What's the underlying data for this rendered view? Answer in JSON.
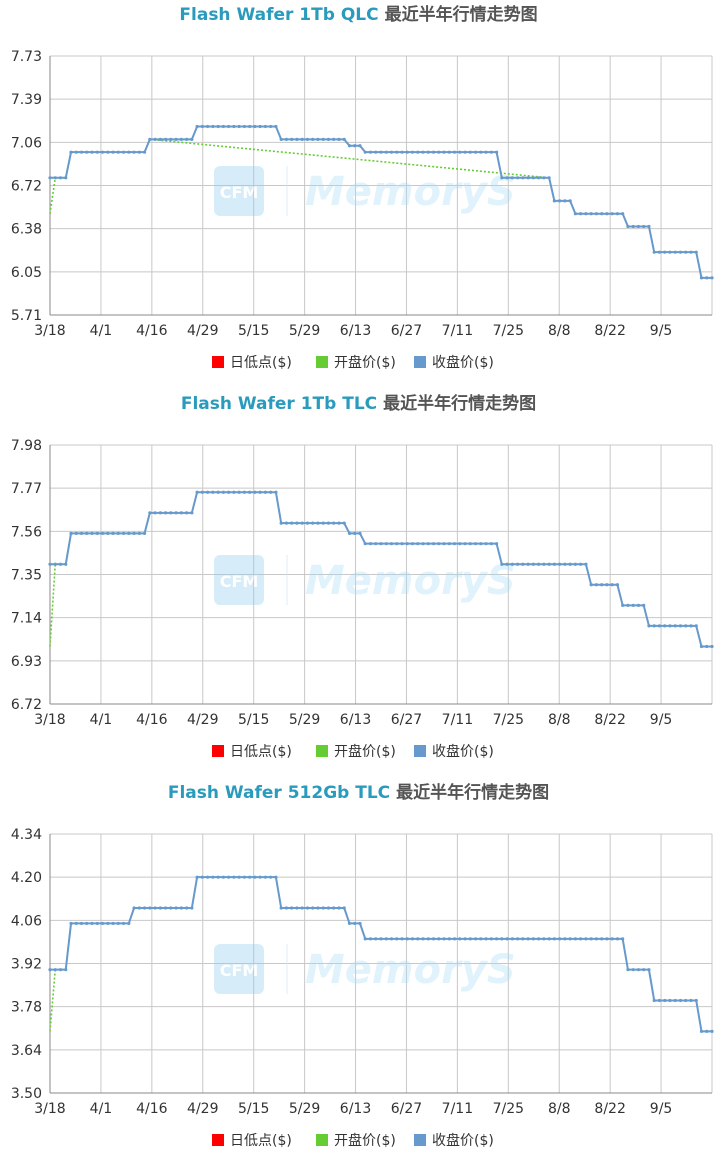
{
  "chart_data": [
    {
      "type": "line",
      "title": "Flash Wafer 1Tb QLC",
      "title_suffix": "最近半年行情走势图",
      "ylim": [
        5.71,
        7.73
      ],
      "y_ticks": [
        "7.73",
        "7.39",
        "7.06",
        "6.72",
        "6.38",
        "6.05",
        "5.71"
      ],
      "x_ticks": [
        "3/18",
        "4/1",
        "4/16",
        "4/29",
        "5/15",
        "5/29",
        "6/13",
        "6/27",
        "7/11",
        "7/25",
        "8/8",
        "8/22",
        "9/5"
      ],
      "x_range": [
        0,
        126
      ],
      "legend": [
        "日低点($)",
        "开盘价($)",
        "收盘价($)"
      ],
      "colors": {
        "low": "#ff0000",
        "open": "#66cc33",
        "close": "#6699cc"
      },
      "series": [
        {
          "name": "收盘价($)",
          "steps": [
            [
              0,
              6.78
            ],
            [
              4,
              6.98
            ],
            [
              19,
              7.08
            ],
            [
              28,
              7.18
            ],
            [
              44,
              7.08
            ],
            [
              57,
              7.03
            ],
            [
              60,
              6.98
            ],
            [
              86,
              6.78
            ],
            [
              96,
              6.6
            ],
            [
              100,
              6.5
            ],
            [
              110,
              6.4
            ],
            [
              115,
              6.2
            ],
            [
              124,
              6.0
            ],
            [
              126,
              6.0
            ]
          ]
        },
        {
          "name": "开盘价($)",
          "points": [
            [
              0,
              6.5
            ],
            [
              1,
              6.78
            ],
            [
              3,
              6.78
            ],
            [
              4,
              6.98
            ],
            [
              18,
              6.98
            ],
            [
              19,
              7.08
            ],
            [
              95,
              6.78
            ],
            [
              96,
              6.6
            ]
          ]
        }
      ]
    },
    {
      "type": "line",
      "title": "Flash Wafer 1Tb TLC",
      "title_suffix": "最近半年行情走势图",
      "ylim": [
        6.72,
        7.98
      ],
      "y_ticks": [
        "7.98",
        "7.77",
        "7.56",
        "7.35",
        "7.14",
        "6.93",
        "6.72"
      ],
      "x_ticks": [
        "3/18",
        "4/1",
        "4/16",
        "4/29",
        "5/15",
        "5/29",
        "6/13",
        "6/27",
        "7/11",
        "7/25",
        "8/8",
        "8/22",
        "9/5"
      ],
      "x_range": [
        0,
        126
      ],
      "legend": [
        "日低点($)",
        "开盘价($)",
        "收盘价($)"
      ],
      "colors": {
        "low": "#ff0000",
        "open": "#66cc33",
        "close": "#6699cc"
      },
      "series": [
        {
          "name": "收盘价($)",
          "steps": [
            [
              0,
              7.4
            ],
            [
              4,
              7.55
            ],
            [
              19,
              7.65
            ],
            [
              28,
              7.75
            ],
            [
              44,
              7.6
            ],
            [
              57,
              7.55
            ],
            [
              60,
              7.5
            ],
            [
              86,
              7.4
            ],
            [
              103,
              7.3
            ],
            [
              109,
              7.2
            ],
            [
              114,
              7.1
            ],
            [
              124,
              7.0
            ],
            [
              126,
              7.0
            ]
          ]
        },
        {
          "name": "开盘价($)",
          "points": [
            [
              0,
              7.0
            ],
            [
              1,
              7.4
            ],
            [
              3,
              7.4
            ],
            [
              4,
              7.55
            ],
            [
              18,
              7.55
            ],
            [
              19,
              7.65
            ]
          ]
        }
      ]
    },
    {
      "type": "line",
      "title": "Flash Wafer 512Gb TLC",
      "title_suffix": "最近半年行情走势图",
      "ylim": [
        3.5,
        4.34
      ],
      "y_ticks": [
        "4.34",
        "4.20",
        "4.06",
        "3.92",
        "3.78",
        "3.64",
        "3.50"
      ],
      "x_ticks": [
        "3/18",
        "4/1",
        "4/16",
        "4/29",
        "5/15",
        "5/29",
        "6/13",
        "6/27",
        "7/11",
        "7/25",
        "8/8",
        "8/22",
        "9/5"
      ],
      "x_range": [
        0,
        126
      ],
      "legend": [
        "日低点($)",
        "开盘价($)",
        "收盘价($)"
      ],
      "colors": {
        "low": "#ff0000",
        "open": "#66cc33",
        "close": "#6699cc"
      },
      "series": [
        {
          "name": "收盘价($)",
          "steps": [
            [
              0,
              3.9
            ],
            [
              4,
              4.05
            ],
            [
              16,
              4.1
            ],
            [
              28,
              4.2
            ],
            [
              44,
              4.1
            ],
            [
              57,
              4.05
            ],
            [
              60,
              4.0
            ],
            [
              110,
              3.9
            ],
            [
              115,
              3.8
            ],
            [
              124,
              3.7
            ],
            [
              126,
              3.7
            ]
          ]
        },
        {
          "name": "开盘价($)",
          "points": [
            [
              0,
              3.7
            ],
            [
              1,
              3.9
            ],
            [
              3,
              3.9
            ],
            [
              4,
              4.05
            ]
          ]
        }
      ]
    }
  ],
  "watermark": {
    "logo": "CFM",
    "text": "MemoryS"
  }
}
